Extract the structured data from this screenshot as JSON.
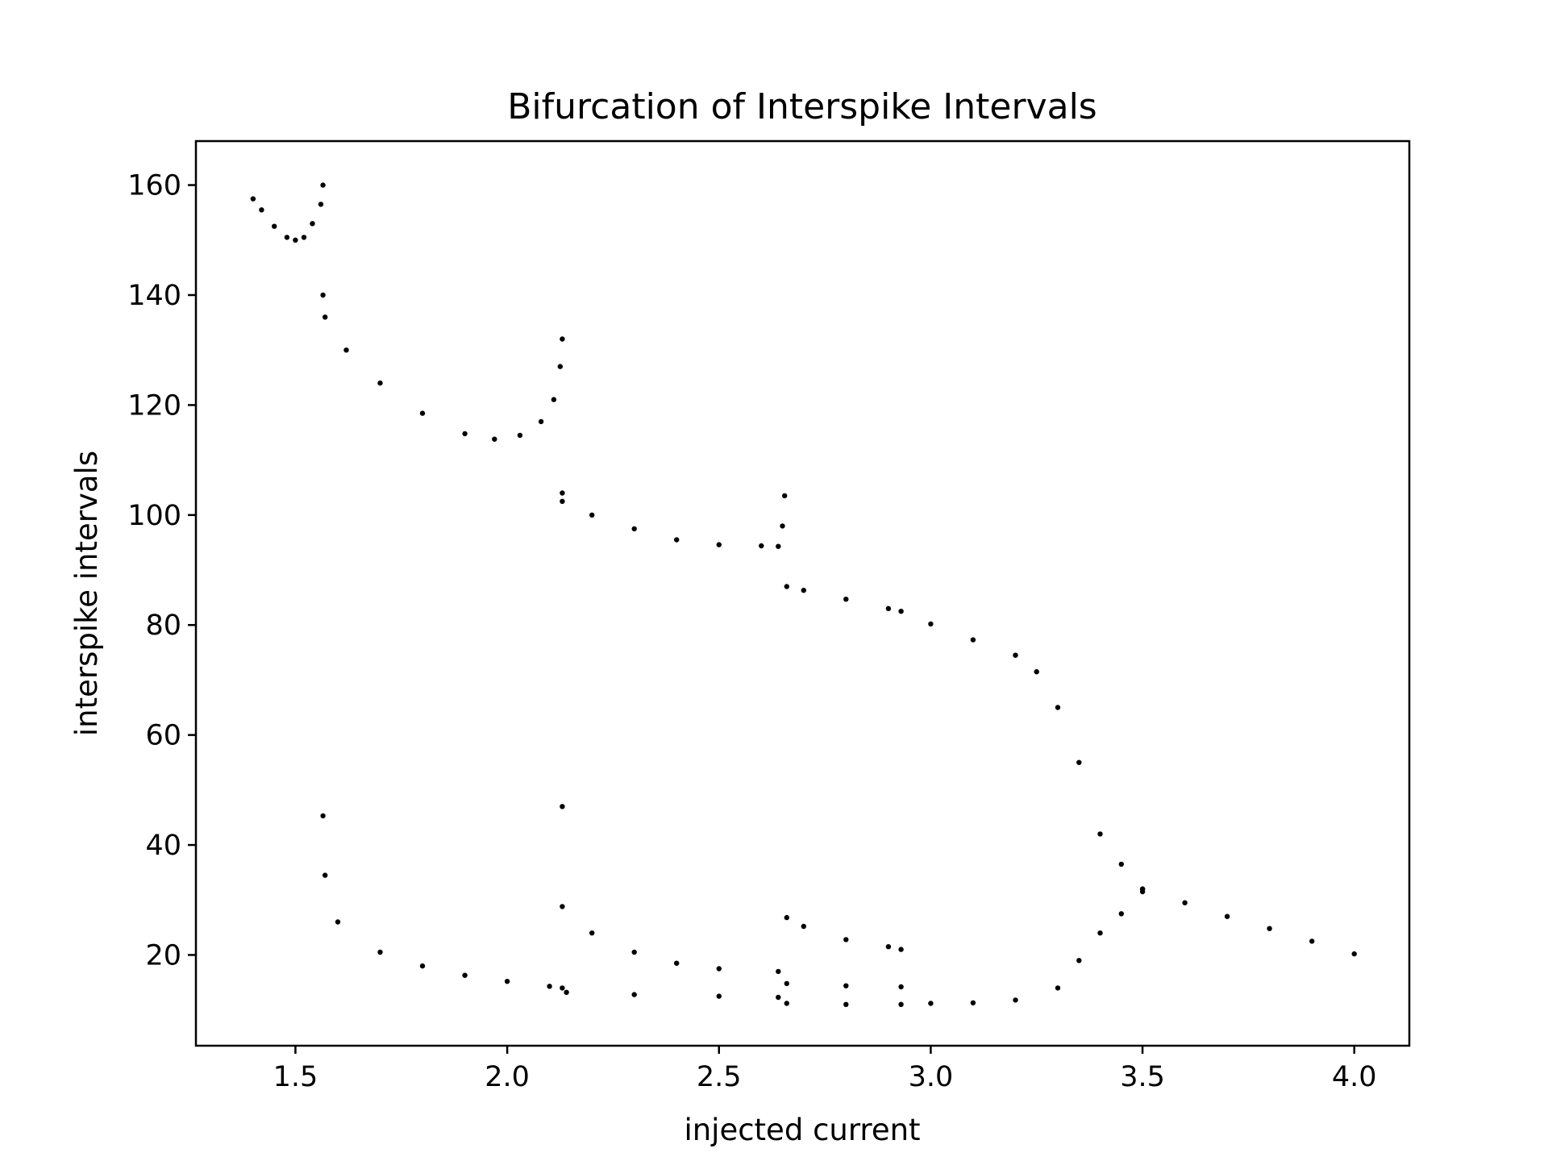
{
  "chart_data": {
    "type": "scatter",
    "title": "Bifurcation of Interspike Intervals",
    "xlabel": "injected current",
    "ylabel": "interspike intervals",
    "xlim": [
      1.265,
      4.13
    ],
    "ylim": [
      3.5,
      168
    ],
    "xticks": [
      1.5,
      2.0,
      2.5,
      3.0,
      3.5,
      4.0
    ],
    "xtick_labels": [
      "1.5",
      "2.0",
      "2.5",
      "3.0",
      "3.5",
      "4.0"
    ],
    "yticks": [
      20,
      40,
      60,
      80,
      100,
      120,
      140,
      160
    ],
    "ytick_labels": [
      "20",
      "40",
      "60",
      "80",
      "100",
      "120",
      "140",
      "160"
    ],
    "grid": false,
    "marker_color": "#000000",
    "series": [
      {
        "points": [
          [
            1.4,
            157.5
          ],
          [
            1.42,
            155.5
          ],
          [
            1.45,
            152.5
          ],
          [
            1.48,
            150.5
          ],
          [
            1.5,
            150.0
          ],
          [
            1.52,
            150.5
          ],
          [
            1.54,
            153.0
          ],
          [
            1.56,
            156.5
          ],
          [
            1.565,
            160.0
          ],
          [
            1.565,
            140.0
          ],
          [
            1.57,
            136.0
          ],
          [
            1.62,
            130.0
          ],
          [
            1.7,
            124.0
          ],
          [
            1.8,
            118.5
          ],
          [
            1.9,
            114.8
          ],
          [
            1.97,
            113.8
          ],
          [
            2.03,
            114.5
          ],
          [
            2.08,
            117.0
          ],
          [
            2.11,
            121.0
          ],
          [
            2.125,
            127.0
          ],
          [
            2.13,
            132.0
          ],
          [
            2.13,
            104.0
          ],
          [
            2.13,
            102.5
          ],
          [
            2.2,
            100.0
          ],
          [
            2.3,
            97.5
          ],
          [
            2.4,
            95.5
          ],
          [
            2.5,
            94.6
          ],
          [
            2.6,
            94.4
          ],
          [
            2.64,
            94.3
          ],
          [
            2.65,
            98.0
          ],
          [
            2.655,
            103.5
          ],
          [
            2.66,
            87.0
          ],
          [
            2.7,
            86.3
          ],
          [
            2.8,
            84.7
          ],
          [
            2.9,
            83.0
          ],
          [
            2.93,
            82.5
          ],
          [
            3.0,
            80.2
          ],
          [
            3.1,
            77.3
          ],
          [
            3.2,
            74.5
          ],
          [
            3.25,
            71.5
          ],
          [
            3.3,
            65.0
          ],
          [
            3.35,
            55.0
          ],
          [
            3.4,
            42.0
          ],
          [
            3.45,
            36.5
          ],
          [
            3.5,
            32.0
          ],
          [
            1.565,
            45.3
          ],
          [
            1.57,
            34.5
          ],
          [
            1.6,
            26.0
          ],
          [
            1.7,
            20.5
          ],
          [
            1.8,
            18.0
          ],
          [
            1.9,
            16.3
          ],
          [
            2.0,
            15.2
          ],
          [
            2.1,
            14.3
          ],
          [
            2.13,
            14.0
          ],
          [
            2.13,
            47.0
          ],
          [
            2.13,
            28.8
          ],
          [
            2.2,
            24.0
          ],
          [
            2.3,
            20.5
          ],
          [
            2.4,
            18.5
          ],
          [
            2.5,
            17.5
          ],
          [
            2.64,
            17.0
          ],
          [
            2.14,
            13.2
          ],
          [
            2.3,
            12.8
          ],
          [
            2.5,
            12.5
          ],
          [
            2.64,
            12.3
          ],
          [
            2.66,
            26.8
          ],
          [
            2.7,
            25.2
          ],
          [
            2.8,
            22.8
          ],
          [
            2.9,
            21.5
          ],
          [
            2.93,
            21.0
          ],
          [
            2.66,
            14.8
          ],
          [
            2.8,
            14.4
          ],
          [
            2.93,
            14.2
          ],
          [
            2.66,
            11.2
          ],
          [
            2.8,
            11.0
          ],
          [
            2.93,
            11.0
          ],
          [
            3.0,
            11.2
          ],
          [
            3.1,
            11.3
          ],
          [
            3.2,
            11.8
          ],
          [
            3.3,
            14.0
          ],
          [
            3.35,
            19.0
          ],
          [
            3.4,
            24.0
          ],
          [
            3.45,
            27.5
          ],
          [
            3.5,
            31.5
          ],
          [
            3.5,
            32.0
          ],
          [
            3.6,
            29.5
          ],
          [
            3.7,
            27.0
          ],
          [
            3.8,
            24.8
          ],
          [
            3.9,
            22.5
          ],
          [
            4.0,
            20.2
          ]
        ]
      }
    ]
  }
}
